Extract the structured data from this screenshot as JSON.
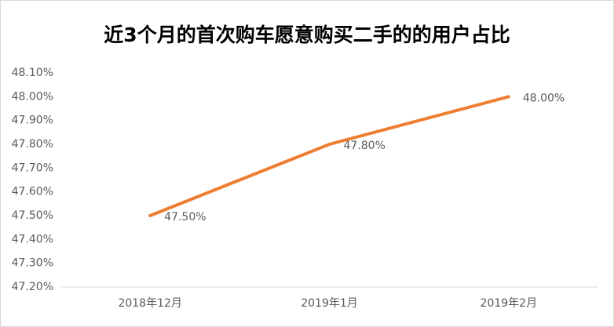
{
  "chart_data": {
    "type": "line",
    "title": "近3个月的首次购车愿意购买二手的的用户占比",
    "categories": [
      "2018年12月",
      "2019年1月",
      "2019年2月"
    ],
    "series": [
      {
        "name": "用户占比",
        "color": "#ed7d31",
        "values": [
          47.5,
          47.8,
          48.0
        ],
        "value_labels": [
          "47.50%",
          "47.80%",
          "48.00%"
        ]
      }
    ],
    "ylim": [
      47.2,
      48.1
    ],
    "yticks": [
      {
        "value": 47.2,
        "label": "47.20%"
      },
      {
        "value": 47.3,
        "label": "47.30%"
      },
      {
        "value": 47.4,
        "label": "47.40%"
      },
      {
        "value": 47.5,
        "label": "47.50%"
      },
      {
        "value": 47.6,
        "label": "47.60%"
      },
      {
        "value": 47.7,
        "label": "47.70%"
      },
      {
        "value": 47.8,
        "label": "47.80%"
      },
      {
        "value": 47.9,
        "label": "47.90%"
      },
      {
        "value": 48.0,
        "label": "48.00%"
      },
      {
        "value": 48.1,
        "label": "48.10%"
      }
    ],
    "grid": false
  }
}
